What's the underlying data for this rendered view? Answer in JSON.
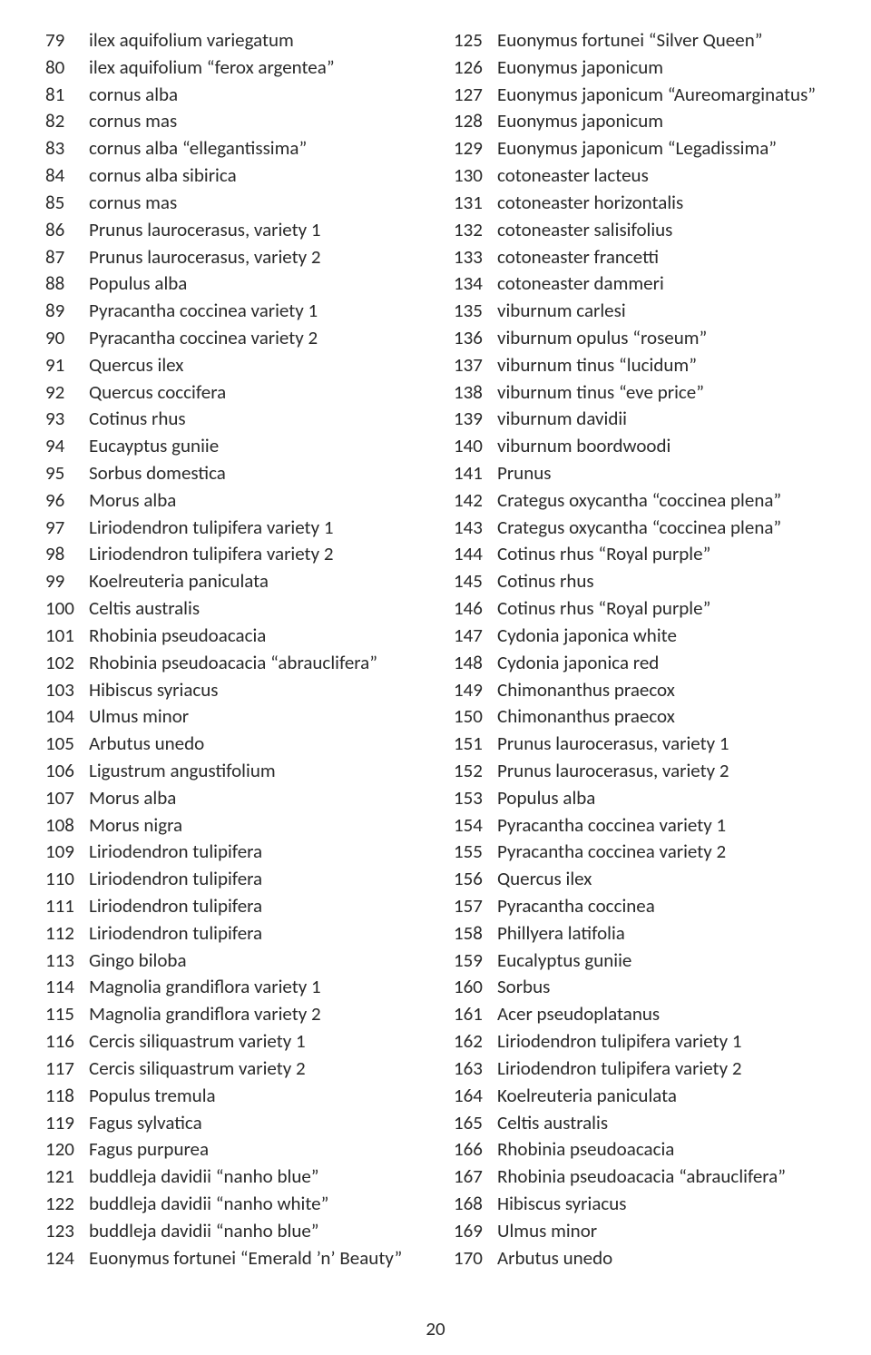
{
  "page_number": "20",
  "left_column": [
    {
      "n": "79",
      "name": "ilex aquifolium variegatum"
    },
    {
      "n": "80",
      "name": "ilex aquifolium \"ferox argentea\""
    },
    {
      "n": "81",
      "name": "cornus alba"
    },
    {
      "n": "82",
      "name": "cornus mas"
    },
    {
      "n": "83",
      "name": "cornus alba \"ellegantissima\""
    },
    {
      "n": "84",
      "name": "cornus alba sibirica"
    },
    {
      "n": "85",
      "name": "cornus mas"
    },
    {
      "n": "86",
      "name": "Prunus laurocerasus, variety 1"
    },
    {
      "n": "87",
      "name": "Prunus laurocerasus, variety 2"
    },
    {
      "n": "88",
      "name": "Populus alba"
    },
    {
      "n": "89",
      "name": "Pyracantha coccinea variety 1"
    },
    {
      "n": "90",
      "name": "Pyracantha coccinea variety 2"
    },
    {
      "n": "91",
      "name": "Quercus ilex"
    },
    {
      "n": "92",
      "name": "Quercus coccifera"
    },
    {
      "n": "93",
      "name": "Cotinus rhus"
    },
    {
      "n": "94",
      "name": "Eucayptus guniie"
    },
    {
      "n": "95",
      "name": "Sorbus domestica"
    },
    {
      "n": "96",
      "name": "Morus alba"
    },
    {
      "n": "97",
      "name": "Liriodendron tulipifera variety 1"
    },
    {
      "n": "98",
      "name": "Liriodendron tulipifera variety 2"
    },
    {
      "n": "99",
      "name": "Koelreuteria paniculata"
    },
    {
      "n": "100",
      "name": "Celtis australis"
    },
    {
      "n": "101",
      "name": "Rhobinia pseudoacacia"
    },
    {
      "n": "102",
      "name": "Rhobinia pseudoacacia \"abrauclifera\""
    },
    {
      "n": "103",
      "name": "Hibiscus syriacus"
    },
    {
      "n": "104",
      "name": "Ulmus minor"
    },
    {
      "n": "105",
      "name": "Arbutus unedo"
    },
    {
      "n": "106",
      "name": "Ligustrum angustifolium"
    },
    {
      "n": "107",
      "name": "Morus alba"
    },
    {
      "n": "108",
      "name": "Morus nigra"
    },
    {
      "n": "109",
      "name": "Liriodendron tulipifera"
    },
    {
      "n": "110",
      "name": "Liriodendron tulipifera"
    },
    {
      "n": "111",
      "name": "Liriodendron tulipifera"
    },
    {
      "n": "112",
      "name": "Liriodendron tulipifera"
    },
    {
      "n": "113",
      "name": "Gingo biloba"
    },
    {
      "n": "114",
      "name": "Magnolia grandiflora variety 1"
    },
    {
      "n": "115",
      "name": "Magnolia grandiflora variety 2"
    },
    {
      "n": "116",
      "name": "Cercis siliquastrum variety 1"
    },
    {
      "n": "117",
      "name": "Cercis siliquastrum variety 2"
    },
    {
      "n": "118",
      "name": "Populus tremula"
    },
    {
      "n": "119",
      "name": "Fagus sylvatica"
    },
    {
      "n": "120",
      "name": "Fagus purpurea"
    },
    {
      "n": "121",
      "name": "buddleja davidii \"nanho blue\""
    },
    {
      "n": "122",
      "name": "buddleja davidii \"nanho white\""
    },
    {
      "n": "123",
      "name": "buddleja davidii \"nanho blue\""
    },
    {
      "n": "124",
      "name": "Euonymus fortunei \"Emerald 'n' Beauty\""
    }
  ],
  "right_column": [
    {
      "n": "125",
      "name": "Euonymus fortunei \"Silver Queen\""
    },
    {
      "n": "126",
      "name": "Euonymus japonicum"
    },
    {
      "n": "127",
      "name": "Euonymus japonicum \"Aureomarginatus\""
    },
    {
      "n": "128",
      "name": "Euonymus japonicum"
    },
    {
      "n": "129",
      "name": "Euonymus japonicum \"Legadissima\""
    },
    {
      "n": "130",
      "name": "cotoneaster lacteus"
    },
    {
      "n": "131",
      "name": "cotoneaster horizontalis"
    },
    {
      "n": "132",
      "name": "cotoneaster salisifolius"
    },
    {
      "n": "133",
      "name": "cotoneaster francetti"
    },
    {
      "n": "134",
      "name": "cotoneaster dammeri"
    },
    {
      "n": "135",
      "name": "viburnum carlesi"
    },
    {
      "n": "136",
      "name": "viburnum opulus \"roseum\""
    },
    {
      "n": "137",
      "name": "viburnum tinus \"lucidum\""
    },
    {
      "n": "138",
      "name": "viburnum tinus \"eve price\""
    },
    {
      "n": "139",
      "name": "viburnum davidii"
    },
    {
      "n": "140",
      "name": "viburnum boordwoodi"
    },
    {
      "n": "141",
      "name": "Prunus"
    },
    {
      "n": "142",
      "name": "Crategus oxycantha \"coccinea plena\""
    },
    {
      "n": "143",
      "name": "Crategus oxycantha \"coccinea plena\""
    },
    {
      "n": "144",
      "name": "Cotinus rhus \"Royal purple\""
    },
    {
      "n": "145",
      "name": "Cotinus rhus"
    },
    {
      "n": "146",
      "name": "Cotinus rhus \"Royal purple\""
    },
    {
      "n": "147",
      "name": "Cydonia japonica white"
    },
    {
      "n": "148",
      "name": "Cydonia japonica red"
    },
    {
      "n": "149",
      "name": "Chimonanthus praecox"
    },
    {
      "n": "150",
      "name": "Chimonanthus praecox"
    },
    {
      "n": "151",
      "name": "Prunus laurocerasus, variety 1"
    },
    {
      "n": "152",
      "name": "Prunus laurocerasus, variety 2"
    },
    {
      "n": "153",
      "name": "Populus alba"
    },
    {
      "n": "154",
      "name": "Pyracantha coccinea variety 1"
    },
    {
      "n": "155",
      "name": "Pyracantha coccinea variety 2"
    },
    {
      "n": "156",
      "name": "Quercus ilex"
    },
    {
      "n": "157",
      "name": "Pyracantha coccinea"
    },
    {
      "n": "158",
      "name": "Phillyera latifolia"
    },
    {
      "n": "159",
      "name": "Eucalyptus guniie"
    },
    {
      "n": "160",
      "name": "Sorbus"
    },
    {
      "n": "161",
      "name": "Acer pseudoplatanus"
    },
    {
      "n": "162",
      "name": "Liriodendron tulipifera variety 1"
    },
    {
      "n": "163",
      "name": "Liriodendron tulipifera variety 2"
    },
    {
      "n": "164",
      "name": "Koelreuteria paniculata"
    },
    {
      "n": "165",
      "name": "Celtis australis"
    },
    {
      "n": "166",
      "name": "Rhobinia pseudoacacia"
    },
    {
      "n": "167",
      "name": "Rhobinia pseudoacacia \"abrauclifera\""
    },
    {
      "n": "168",
      "name": "Hibiscus syriacus"
    },
    {
      "n": "169",
      "name": "Ulmus minor"
    },
    {
      "n": "170",
      "name": "Arbutus unedo"
    }
  ]
}
